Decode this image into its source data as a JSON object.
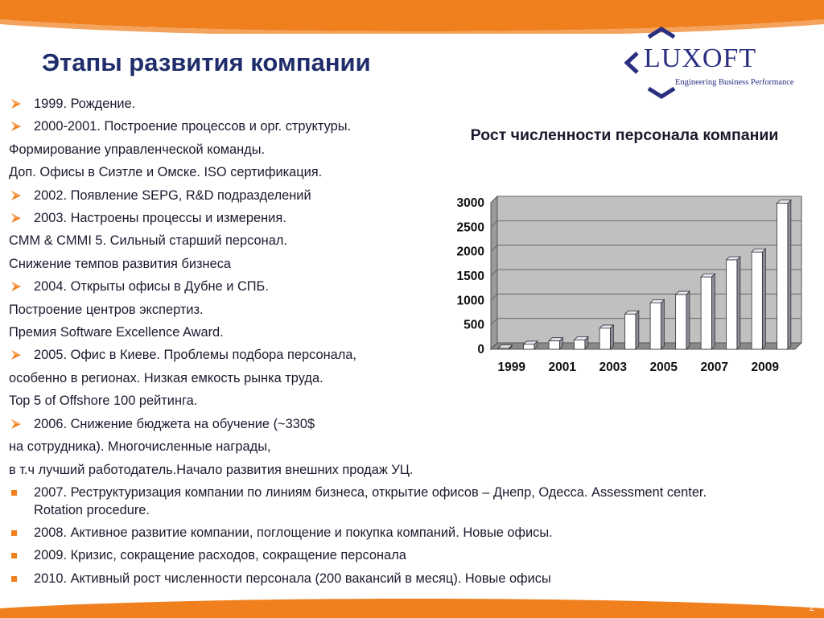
{
  "slide": {
    "title": "Этапы развития компании",
    "page_number": "2",
    "colors": {
      "accent": "#f07f1e",
      "title": "#1f2d6b",
      "logo": "#2a2e80",
      "plot_bg": "#c0c0c0"
    }
  },
  "logo": {
    "text": "LUXOFT",
    "tagline": "Engineering Business Performance",
    "icon": "luxoft-chevron-icon"
  },
  "items": [
    {
      "text": "1999. Рождение.",
      "bullet": "arrow"
    },
    {
      "text": "2000-2001. Построение процессов и орг. структуры.",
      "bullet": "arrow"
    },
    {
      "text": "Формирование управленческой команды.",
      "bullet": "none"
    },
    {
      "text": "Доп. Офисы в Сиэтле и Омске. ISO сертификация.",
      "bullet": "none"
    },
    {
      "text": "2002. Появление SEPG, R&D подразделений",
      "bullet": "arrow"
    },
    {
      "text": "2003. Настроены процессы и измерения.",
      "bullet": "arrow"
    },
    {
      "text": "CMM & CMMI 5.  Сильный старший персонал.",
      "bullet": "none"
    },
    {
      "text": "Снижение темпов развития бизнеса",
      "bullet": "none"
    },
    {
      "text": "2004. Открыты офисы в Дубне и СПБ.",
      "bullet": "arrow"
    },
    {
      "text": "Построение центров экспертиз.",
      "bullet": "none"
    },
    {
      "text": "Премия Software Excellence Award.",
      "bullet": "none"
    },
    {
      "text": "2005. Офис в Киеве. Проблемы подбора персонала,",
      "bullet": "arrow"
    },
    {
      "text": "особенно в регионах. Низкая емкость рынка труда.",
      "bullet": "none"
    },
    {
      "text": "Top 5 of Offshore 100 рейтинга.",
      "bullet": "none"
    },
    {
      "text": "2006. Снижение бюджета на обучение (~330$",
      "bullet": "arrow"
    },
    {
      "text": "на сотрудника). Многочисленные награды,",
      "bullet": "none"
    },
    {
      "text": "в т.ч лучший работодатель.Начало развития внешних продаж УЦ.",
      "bullet": "none"
    },
    {
      "text": "2007. Реструктуризация компании по линиям бизнеса,  открытие офисов – Днепр, Одесса. Assessment center. Rotation procedure.",
      "bullet": "square",
      "wrap": true
    },
    {
      "text": "2008. Активное развитие компании, поглощение и покупка компаний. Новые офисы.",
      "bullet": "square"
    },
    {
      "text": "2009. Кризис, сокращение расходов, сокращение персонала",
      "bullet": "square"
    },
    {
      "text": "2010. Активный рост численности персонала (200 вакансий в месяц). Новые офисы",
      "bullet": "square"
    }
  ],
  "chart_data": {
    "type": "bar",
    "title": "Рост численности персонала компании",
    "xlabel": "",
    "ylabel": "",
    "categories": [
      "1999",
      "2000",
      "2001",
      "2002",
      "2003",
      "2004",
      "2005",
      "2006",
      "2007",
      "2008",
      "2009",
      "2010"
    ],
    "values": [
      20,
      100,
      170,
      190,
      430,
      720,
      950,
      1120,
      1480,
      1830,
      1990,
      2990
    ],
    "x_tick_labels": [
      "1999",
      "2001",
      "2003",
      "2005",
      "2007",
      "2009"
    ],
    "y_ticks": [
      "0",
      "500",
      "1000",
      "1500",
      "2000",
      "2500",
      "3000"
    ],
    "ylim": [
      0,
      3000
    ],
    "grid": true,
    "legend": "none",
    "bar_style": "3d-white"
  }
}
